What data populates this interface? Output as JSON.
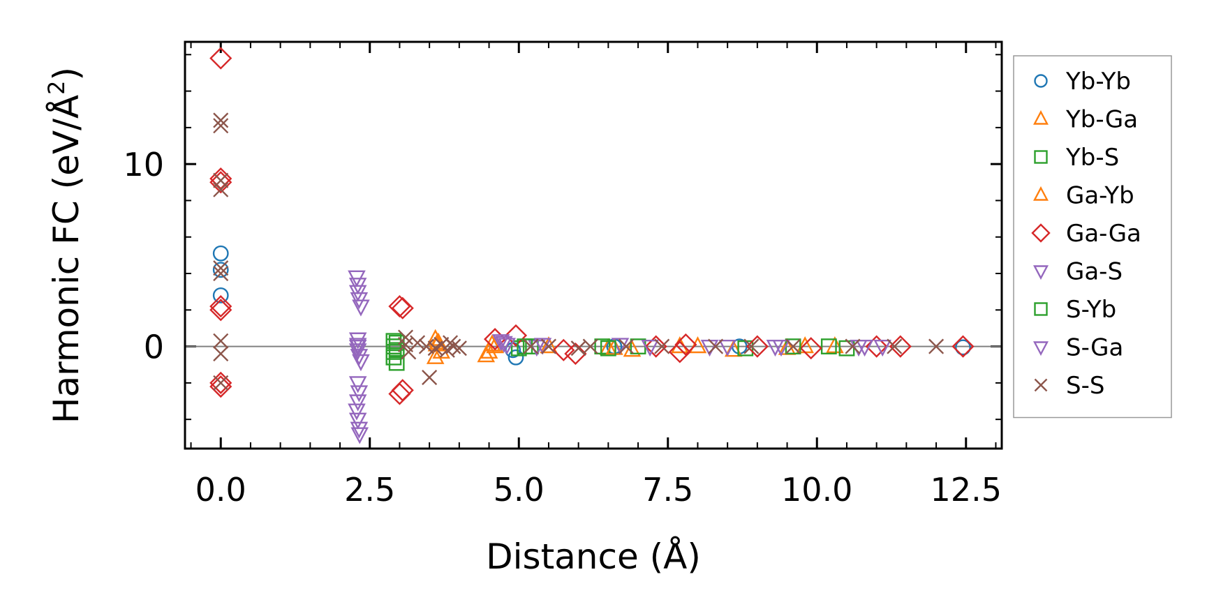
{
  "chart_data": {
    "type": "scatter",
    "title": "",
    "xlabel": "Distance (Å)",
    "ylabel_base": "Harmonic FC (eV/Å",
    "ylabel_sup": "2",
    "ylabel_close": ")",
    "xlim": [
      -0.6,
      13.1
    ],
    "ylim": [
      -5.6,
      16.7
    ],
    "xticks": [
      0.0,
      2.5,
      5.0,
      7.5,
      10.0,
      12.5
    ],
    "xtick_labels": [
      "0.0",
      "2.5",
      "5.0",
      "7.5",
      "10.0",
      "12.5"
    ],
    "yticks": [
      0,
      10
    ],
    "ytick_labels": [
      "0",
      "10"
    ],
    "x_minor_step": 0.5,
    "y_minor_step": 2,
    "zero_line": true,
    "legend_position": "outside right",
    "series": [
      {
        "name": "Yb-Yb",
        "marker": "circle",
        "color": "#1f77b4",
        "points": [
          [
            0,
            5.1
          ],
          [
            0,
            4.2
          ],
          [
            0,
            2.8
          ],
          [
            4.95,
            -0.6
          ],
          [
            4.9,
            -0.2
          ],
          [
            6.6,
            0.0
          ],
          [
            8.7,
            0.0
          ],
          [
            12.45,
            -0.05
          ]
        ]
      },
      {
        "name": "Yb-Ga",
        "marker": "triangle-up",
        "color": "#ff7f0e",
        "points": [
          [
            3.6,
            0.4
          ],
          [
            3.6,
            -0.6
          ],
          [
            3.65,
            0.2
          ],
          [
            3.7,
            -0.3
          ],
          [
            4.45,
            -0.5
          ],
          [
            4.5,
            -0.3
          ],
          [
            4.55,
            0.1
          ],
          [
            6.5,
            -0.1
          ],
          [
            6.9,
            -0.2
          ],
          [
            7.7,
            0.0
          ],
          [
            8.6,
            -0.2
          ],
          [
            9.5,
            -0.1
          ],
          [
            10.3,
            0.0
          ]
        ]
      },
      {
        "name": "Yb-S",
        "marker": "square",
        "color": "#2ca02c",
        "points": [
          [
            2.9,
            0.3
          ],
          [
            2.9,
            0.0
          ],
          [
            2.9,
            -0.3
          ],
          [
            2.9,
            -0.6
          ],
          [
            2.95,
            -0.9
          ],
          [
            2.95,
            0.2
          ],
          [
            5.0,
            -0.1
          ],
          [
            5.2,
            0.0
          ],
          [
            6.4,
            0.0
          ],
          [
            7.0,
            0.0
          ],
          [
            8.8,
            -0.1
          ],
          [
            10.2,
            0.0
          ],
          [
            10.5,
            -0.1
          ]
        ]
      },
      {
        "name": "Ga-Yb",
        "marker": "triangle-up",
        "color": "#ff7f0e",
        "points": [
          [
            3.62,
            0.1
          ],
          [
            4.6,
            0.0
          ],
          [
            5.5,
            0.0
          ],
          [
            6.6,
            -0.1
          ],
          [
            8.0,
            0.0
          ],
          [
            9.8,
            0.0
          ]
        ]
      },
      {
        "name": "Ga-Ga",
        "marker": "diamond",
        "color": "#d62728",
        "points": [
          [
            0,
            15.8
          ],
          [
            0,
            9.2
          ],
          [
            0,
            9.0
          ],
          [
            0,
            2.2
          ],
          [
            0,
            2.0
          ],
          [
            0,
            -2.0
          ],
          [
            0,
            -2.2
          ],
          [
            3.0,
            2.2
          ],
          [
            3.05,
            2.1
          ],
          [
            3.0,
            -2.6
          ],
          [
            3.05,
            -2.4
          ],
          [
            4.6,
            0.4
          ],
          [
            4.95,
            0.6
          ],
          [
            5.75,
            -0.2
          ],
          [
            5.95,
            -0.4
          ],
          [
            7.3,
            0.0
          ],
          [
            7.7,
            -0.3
          ],
          [
            7.8,
            0.1
          ],
          [
            9.0,
            0.0
          ],
          [
            9.9,
            -0.1
          ],
          [
            11.0,
            0.0
          ],
          [
            11.4,
            0.0
          ],
          [
            12.45,
            0.0
          ]
        ]
      },
      {
        "name": "Ga-S",
        "marker": "triangle-down",
        "color": "#9467bd",
        "points": [
          [
            2.28,
            3.8
          ],
          [
            2.3,
            3.4
          ],
          [
            2.3,
            3.0
          ],
          [
            2.32,
            2.6
          ],
          [
            2.35,
            2.2
          ],
          [
            2.3,
            0.4
          ],
          [
            2.3,
            0.1
          ],
          [
            2.3,
            -0.2
          ],
          [
            2.32,
            -0.5
          ],
          [
            2.35,
            -0.8
          ],
          [
            2.3,
            -2.0
          ],
          [
            2.32,
            -2.5
          ],
          [
            2.3,
            -3.0
          ],
          [
            2.28,
            -3.5
          ],
          [
            2.3,
            -4.0
          ],
          [
            2.32,
            -4.5
          ],
          [
            2.33,
            -4.8
          ],
          [
            4.7,
            0.3
          ],
          [
            4.8,
            0.1
          ],
          [
            5.3,
            0.0
          ],
          [
            6.7,
            0.1
          ],
          [
            8.2,
            0.0
          ],
          [
            9.3,
            0.0
          ],
          [
            10.7,
            0.0
          ]
        ]
      },
      {
        "name": "S-Yb",
        "marker": "square",
        "color": "#2ca02c",
        "points": [
          [
            2.95,
            -0.2
          ],
          [
            5.1,
            0.0
          ],
          [
            6.5,
            -0.1
          ],
          [
            9.6,
            0.0
          ]
        ]
      },
      {
        "name": "S-Ga",
        "marker": "triangle-down",
        "color": "#9467bd",
        "points": [
          [
            2.3,
            0.0
          ],
          [
            4.75,
            0.2
          ],
          [
            5.4,
            0.1
          ],
          [
            7.2,
            0.0
          ],
          [
            8.5,
            0.0
          ],
          [
            9.4,
            0.0
          ],
          [
            10.8,
            0.0
          ],
          [
            11.1,
            0.0
          ]
        ]
      },
      {
        "name": "S-S",
        "marker": "x",
        "color": "#8c564b",
        "points": [
          [
            0,
            12.4
          ],
          [
            0,
            12.1
          ],
          [
            0,
            9.1
          ],
          [
            0,
            8.6
          ],
          [
            0,
            4.3
          ],
          [
            0,
            4.0
          ],
          [
            0,
            0.3
          ],
          [
            0,
            -0.4
          ],
          [
            0,
            -2.0
          ],
          [
            3.1,
            0.5
          ],
          [
            3.1,
            0.1
          ],
          [
            3.15,
            -0.3
          ],
          [
            3.3,
            0.2
          ],
          [
            3.45,
            0.0
          ],
          [
            3.5,
            -1.7
          ],
          [
            3.6,
            -0.1
          ],
          [
            3.7,
            0.1
          ],
          [
            3.8,
            -0.2
          ],
          [
            3.85,
            0.2
          ],
          [
            3.9,
            0.0
          ],
          [
            4.0,
            -0.1
          ],
          [
            5.2,
            0.0
          ],
          [
            5.5,
            0.0
          ],
          [
            6.0,
            -0.1
          ],
          [
            6.2,
            0.0
          ],
          [
            6.8,
            0.0
          ],
          [
            7.4,
            0.0
          ],
          [
            8.3,
            0.0
          ],
          [
            8.9,
            0.0
          ],
          [
            9.6,
            0.0
          ],
          [
            10.6,
            0.0
          ],
          [
            11.3,
            0.0
          ],
          [
            12.0,
            0.0
          ]
        ]
      }
    ]
  }
}
